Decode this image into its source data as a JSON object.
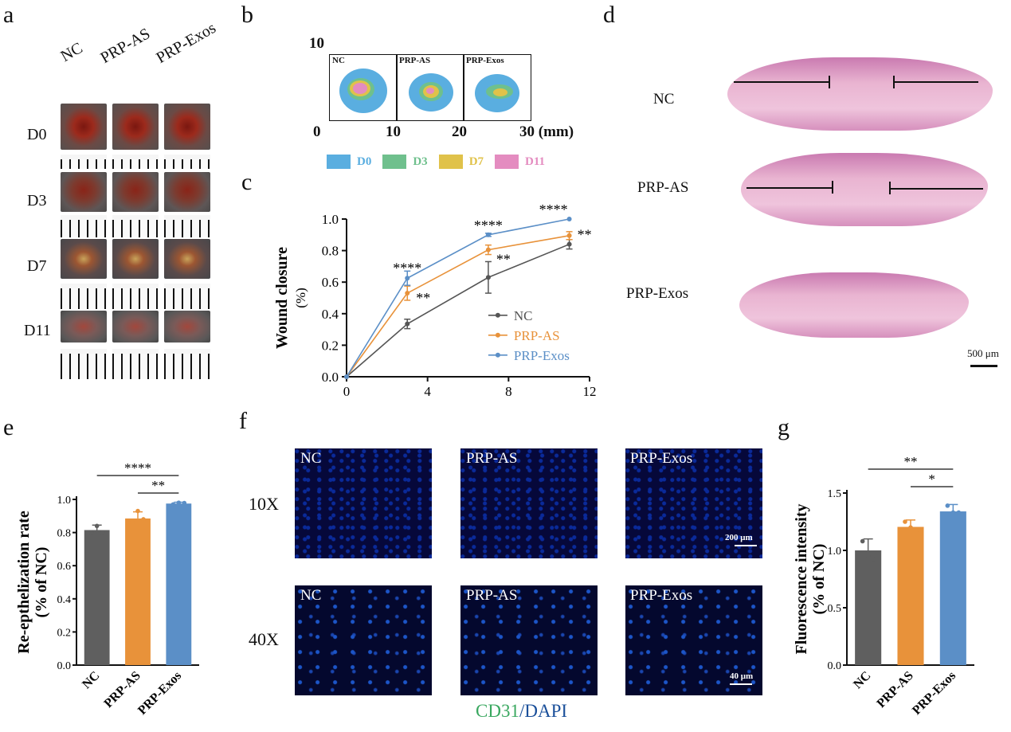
{
  "panels": {
    "a": "a",
    "b": "b",
    "c": "c",
    "d": "d",
    "e": "e",
    "f": "f",
    "g": "g"
  },
  "panel_a": {
    "cols": [
      "NC",
      "PRP-AS",
      "PRP-Exos"
    ],
    "rows": [
      "D0",
      "D3",
      "D7",
      "D11"
    ]
  },
  "panel_b": {
    "top_tick": "10",
    "x_ticks": [
      "0",
      "10",
      "20",
      "30 (mm)"
    ],
    "boxes": [
      "NC",
      "PRP-AS",
      "PRP-Exos"
    ],
    "legend": [
      {
        "label": "D0",
        "color": "#5aaee0"
      },
      {
        "label": "D3",
        "color": "#6fc08d"
      },
      {
        "label": "D7",
        "color": "#e0c24a"
      },
      {
        "label": "D11",
        "color": "#e48cc0"
      }
    ]
  },
  "panel_d": {
    "labels": [
      "NC",
      "PRP-AS",
      "PRP-Exos"
    ],
    "scale": "500 μm"
  },
  "panel_f": {
    "rows": [
      "10X",
      "40X"
    ],
    "top": [
      "NC",
      "PRP-AS",
      "PRP-Exos"
    ],
    "bottom": [
      "NC",
      "PRP-AS",
      "PRP-Exos"
    ],
    "scale10": "200 μm",
    "scale40": "40 μm",
    "caption_a": "CD31",
    "caption_sep": "/",
    "caption_b": "DAPI"
  },
  "chart_data": [
    {
      "type": "line",
      "ylabel": "Wound closure",
      "ylabel2": "(%)",
      "xlim": [
        0,
        12
      ],
      "ylim": [
        0,
        1.0
      ],
      "x_ticks": [
        "0",
        "4",
        "8",
        "12"
      ],
      "y_ticks": [
        "0.0",
        "0.2",
        "0.4",
        "0.6",
        "0.8",
        "1.0"
      ],
      "x": [
        0,
        3,
        7,
        11
      ],
      "series": [
        {
          "name": "NC",
          "color": "#555555",
          "values": [
            0,
            0.335,
            0.63,
            0.84
          ],
          "err": [
            0,
            0.03,
            0.1,
            0.03
          ]
        },
        {
          "name": "PRP-AS",
          "color": "#e8923a",
          "values": [
            0,
            0.53,
            0.805,
            0.895
          ],
          "err": [
            0,
            0.045,
            0.03,
            0.025
          ]
        },
        {
          "name": "PRP-Exos",
          "color": "#5b8fc7",
          "values": [
            0,
            0.625,
            0.9,
            1.0
          ],
          "err": [
            0,
            0.045,
            0.01,
            0.0
          ]
        }
      ],
      "annotations": [
        "****",
        "**",
        "****",
        "**",
        "****",
        "**"
      ],
      "legend_position": "center-right"
    },
    {
      "type": "bar",
      "ylabel": "Re-epthelization rate",
      "ylabel2": "(% of NC)",
      "categories": [
        "NC",
        "PRP-AS",
        "PRP-Exos"
      ],
      "values": [
        0.815,
        0.885,
        0.975
      ],
      "err": [
        0.03,
        0.04,
        0.008
      ],
      "colors": [
        "#5f5f5f",
        "#e8923a",
        "#5b8fc7"
      ],
      "points": [
        [
          0.8,
          0.84,
          0.8
        ],
        [
          0.86,
          0.93,
          0.88
        ],
        [
          0.97,
          0.98,
          0.978
        ]
      ],
      "ylim": [
        0,
        1.0
      ],
      "y_ticks": [
        "0.0",
        "0.2",
        "0.4",
        "0.6",
        "0.8",
        "1.0"
      ],
      "sig": [
        "****",
        "**"
      ]
    },
    {
      "type": "bar",
      "ylabel": "Fluorescence intensity",
      "ylabel2": "(% of NC)",
      "categories": [
        "NC",
        "PRP-AS",
        "PRP-Exos"
      ],
      "values": [
        1.0,
        1.205,
        1.34
      ],
      "err": [
        0.1,
        0.06,
        0.06
      ],
      "colors": [
        "#5f5f5f",
        "#e8923a",
        "#5b8fc7"
      ],
      "points": [
        [
          1.08,
          0.95,
          0.92
        ],
        [
          1.25,
          1.2,
          1.17
        ],
        [
          1.39,
          1.33,
          1.33
        ]
      ],
      "ylim": [
        0,
        1.5
      ],
      "y_ticks": [
        "0.0",
        "0.5",
        "1.0",
        "1.5"
      ],
      "sig": [
        "**",
        "*"
      ]
    }
  ]
}
